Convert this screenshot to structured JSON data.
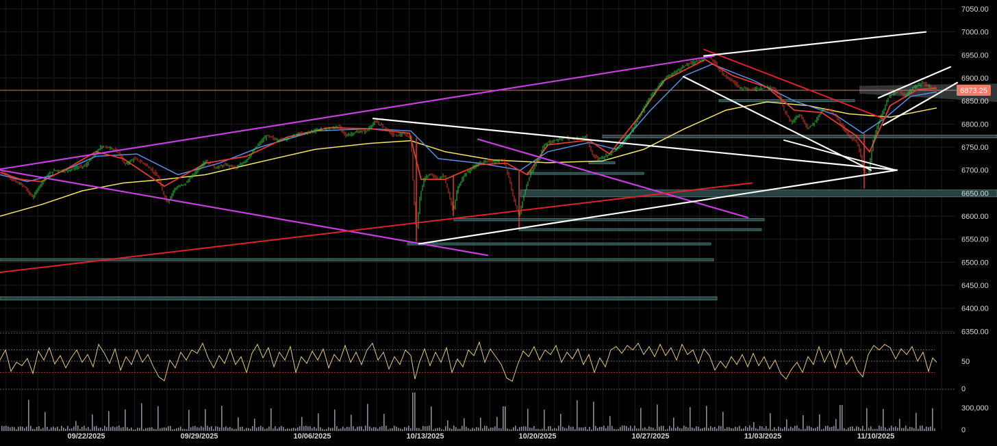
{
  "chart_data": {
    "type": "line",
    "title": "",
    "xlabel": "",
    "ylabel": "",
    "price_ticks": [
      "7050.00",
      "7000.00",
      "6950.00",
      "6900.00",
      "6850.00",
      "6800.00",
      "6750.00",
      "6700.00",
      "6650.00",
      "6600.00",
      "6550.00",
      "6500.00",
      "6450.00",
      "6400.00",
      "6350.00"
    ],
    "ylim": [
      6350,
      7050
    ],
    "date_ticks": [
      "09/22/2025",
      "09/29/2025",
      "10/06/2025",
      "10/13/2025",
      "10/20/2025",
      "10/27/2025",
      "11/03/2025",
      "11/10/2025"
    ],
    "last_price": "6873.25",
    "last_price_value": 6873.25,
    "rsi_ticks": [
      "50",
      "0"
    ],
    "rsi_levels": [
      30,
      50,
      70
    ],
    "volume_ticks": [
      "300,000",
      "0"
    ],
    "price_path": [
      [
        0,
        6700
      ],
      [
        10,
        6690
      ],
      [
        22,
        6675
      ],
      [
        35,
        6665
      ],
      [
        48,
        6640
      ],
      [
        55,
        6660
      ],
      [
        68,
        6688
      ],
      [
        80,
        6700
      ],
      [
        95,
        6698
      ],
      [
        110,
        6705
      ],
      [
        125,
        6710
      ],
      [
        135,
        6728
      ],
      [
        148,
        6752
      ],
      [
        162,
        6748
      ],
      [
        175,
        6735
      ],
      [
        182,
        6712
      ],
      [
        196,
        6725
      ],
      [
        210,
        6715
      ],
      [
        222,
        6700
      ],
      [
        232,
        6682
      ],
      [
        238,
        6650
      ],
      [
        245,
        6630
      ],
      [
        255,
        6660
      ],
      [
        270,
        6670
      ],
      [
        285,
        6695
      ],
      [
        300,
        6720
      ],
      [
        315,
        6705
      ],
      [
        330,
        6712
      ],
      [
        345,
        6705
      ],
      [
        360,
        6722
      ],
      [
        375,
        6752
      ],
      [
        390,
        6775
      ],
      [
        405,
        6765
      ],
      [
        420,
        6770
      ],
      [
        435,
        6778
      ],
      [
        450,
        6782
      ],
      [
        465,
        6788
      ],
      [
        480,
        6790
      ],
      [
        495,
        6795
      ],
      [
        505,
        6775
      ],
      [
        520,
        6782
      ],
      [
        535,
        6785
      ],
      [
        548,
        6805
      ],
      [
        560,
        6795
      ],
      [
        575,
        6775
      ],
      [
        590,
        6778
      ],
      [
        600,
        6770
      ],
      [
        604,
        6650
      ],
      [
        608,
        6560
      ],
      [
        613,
        6640
      ],
      [
        620,
        6685
      ],
      [
        630,
        6690
      ],
      [
        640,
        6680
      ],
      [
        648,
        6690
      ],
      [
        655,
        6650
      ],
      [
        662,
        6610
      ],
      [
        668,
        6660
      ],
      [
        678,
        6690
      ],
      [
        690,
        6705
      ],
      [
        700,
        6715
      ],
      [
        712,
        6720
      ],
      [
        724,
        6718
      ],
      [
        735,
        6722
      ],
      [
        742,
        6690
      ],
      [
        750,
        6640
      ],
      [
        758,
        6600
      ],
      [
        765,
        6645
      ],
      [
        775,
        6695
      ],
      [
        785,
        6720
      ],
      [
        795,
        6755
      ],
      [
        810,
        6765
      ],
      [
        825,
        6770
      ],
      [
        840,
        6768
      ],
      [
        855,
        6772
      ],
      [
        865,
        6735
      ],
      [
        872,
        6725
      ],
      [
        880,
        6728
      ],
      [
        890,
        6735
      ],
      [
        905,
        6750
      ],
      [
        920,
        6780
      ],
      [
        935,
        6820
      ],
      [
        948,
        6855
      ],
      [
        960,
        6880
      ],
      [
        972,
        6900
      ],
      [
        985,
        6912
      ],
      [
        998,
        6925
      ],
      [
        1012,
        6935
      ],
      [
        1025,
        6940
      ],
      [
        1035,
        6948
      ],
      [
        1043,
        6935
      ],
      [
        1050,
        6920
      ],
      [
        1058,
        6905
      ],
      [
        1068,
        6895
      ],
      [
        1080,
        6880
      ],
      [
        1095,
        6875
      ],
      [
        1110,
        6878
      ],
      [
        1125,
        6880
      ],
      [
        1138,
        6865
      ],
      [
        1145,
        6830
      ],
      [
        1155,
        6805
      ],
      [
        1168,
        6820
      ],
      [
        1180,
        6790
      ],
      [
        1190,
        6805
      ],
      [
        1200,
        6830
      ],
      [
        1212,
        6830
      ],
      [
        1222,
        6815
      ],
      [
        1232,
        6790
      ],
      [
        1242,
        6770
      ],
      [
        1252,
        6760
      ],
      [
        1262,
        6695
      ],
      [
        1268,
        6690
      ],
      [
        1275,
        6765
      ],
      [
        1285,
        6810
      ],
      [
        1298,
        6860
      ],
      [
        1310,
        6870
      ],
      [
        1322,
        6862
      ],
      [
        1335,
        6880
      ],
      [
        1348,
        6890
      ],
      [
        1358,
        6882
      ],
      [
        1368,
        6873
      ]
    ],
    "ma_fast_path": [
      [
        0,
        6695
      ],
      [
        30,
        6680
      ],
      [
        60,
        6675
      ],
      [
        100,
        6705
      ],
      [
        140,
        6740
      ],
      [
        180,
        6725
      ],
      [
        240,
        6665
      ],
      [
        300,
        6715
      ],
      [
        360,
        6730
      ],
      [
        420,
        6772
      ],
      [
        480,
        6792
      ],
      [
        540,
        6790
      ],
      [
        598,
        6780
      ],
      [
        615,
        6680
      ],
      [
        650,
        6680
      ],
      [
        700,
        6712
      ],
      [
        740,
        6715
      ],
      [
        770,
        6690
      ],
      [
        800,
        6755
      ],
      [
        860,
        6765
      ],
      [
        890,
        6735
      ],
      [
        930,
        6810
      ],
      [
        970,
        6895
      ],
      [
        1030,
        6940
      ],
      [
        1070,
        6905
      ],
      [
        1120,
        6880
      ],
      [
        1160,
        6830
      ],
      [
        1200,
        6825
      ],
      [
        1250,
        6775
      ],
      [
        1270,
        6740
      ],
      [
        1300,
        6840
      ],
      [
        1340,
        6875
      ],
      [
        1368,
        6878
      ]
    ],
    "ma_mid_path": [
      [
        0,
        6690
      ],
      [
        40,
        6675
      ],
      [
        80,
        6690
      ],
      [
        140,
        6730
      ],
      [
        200,
        6735
      ],
      [
        260,
        6690
      ],
      [
        320,
        6715
      ],
      [
        380,
        6750
      ],
      [
        460,
        6785
      ],
      [
        540,
        6790
      ],
      [
        600,
        6785
      ],
      [
        640,
        6725
      ],
      [
        700,
        6715
      ],
      [
        760,
        6700
      ],
      [
        800,
        6740
      ],
      [
        860,
        6760
      ],
      [
        900,
        6745
      ],
      [
        950,
        6830
      ],
      [
        1000,
        6905
      ],
      [
        1040,
        6930
      ],
      [
        1100,
        6895
      ],
      [
        1160,
        6850
      ],
      [
        1220,
        6820
      ],
      [
        1260,
        6780
      ],
      [
        1290,
        6810
      ],
      [
        1330,
        6860
      ],
      [
        1368,
        6870
      ]
    ],
    "ma_slow_path": [
      [
        0,
        6600
      ],
      [
        60,
        6625
      ],
      [
        120,
        6655
      ],
      [
        180,
        6672
      ],
      [
        240,
        6680
      ],
      [
        300,
        6690
      ],
      [
        380,
        6718
      ],
      [
        460,
        6745
      ],
      [
        540,
        6758
      ],
      [
        600,
        6764
      ],
      [
        650,
        6740
      ],
      [
        720,
        6722
      ],
      [
        800,
        6716
      ],
      [
        880,
        6720
      ],
      [
        940,
        6745
      ],
      [
        1000,
        6790
      ],
      [
        1060,
        6830
      ],
      [
        1120,
        6848
      ],
      [
        1180,
        6840
      ],
      [
        1240,
        6822
      ],
      [
        1300,
        6815
      ],
      [
        1368,
        6835
      ]
    ],
    "rsi_path": [
      [
        0,
        52
      ],
      [
        8,
        70
      ],
      [
        16,
        32
      ],
      [
        24,
        48
      ],
      [
        32,
        42
      ],
      [
        40,
        55
      ],
      [
        48,
        28
      ],
      [
        56,
        68
      ],
      [
        64,
        52
      ],
      [
        72,
        74
      ],
      [
        80,
        45
      ],
      [
        88,
        60
      ],
      [
        96,
        38
      ],
      [
        104,
        56
      ],
      [
        112,
        70
      ],
      [
        120,
        48
      ],
      [
        128,
        62
      ],
      [
        136,
        40
      ],
      [
        144,
        80
      ],
      [
        152,
        65
      ],
      [
        160,
        46
      ],
      [
        168,
        72
      ],
      [
        176,
        34
      ],
      [
        184,
        58
      ],
      [
        192,
        44
      ],
      [
        200,
        70
      ],
      [
        208,
        48
      ],
      [
        216,
        62
      ],
      [
        224,
        40
      ],
      [
        232,
        22
      ],
      [
        240,
        15
      ],
      [
        248,
        52
      ],
      [
        256,
        38
      ],
      [
        264,
        66
      ],
      [
        272,
        52
      ],
      [
        280,
        70
      ],
      [
        288,
        64
      ],
      [
        296,
        82
      ],
      [
        304,
        56
      ],
      [
        312,
        38
      ],
      [
        320,
        60
      ],
      [
        328,
        46
      ],
      [
        336,
        72
      ],
      [
        344,
        44
      ],
      [
        352,
        58
      ],
      [
        360,
        30
      ],
      [
        368,
        64
      ],
      [
        376,
        80
      ],
      [
        384,
        56
      ],
      [
        392,
        74
      ],
      [
        400,
        40
      ],
      [
        408,
        66
      ],
      [
        416,
        52
      ],
      [
        424,
        76
      ],
      [
        432,
        30
      ],
      [
        440,
        58
      ],
      [
        448,
        46
      ],
      [
        456,
        68
      ],
      [
        464,
        52
      ],
      [
        472,
        72
      ],
      [
        480,
        38
      ],
      [
        488,
        62
      ],
      [
        496,
        50
      ],
      [
        504,
        78
      ],
      [
        512,
        48
      ],
      [
        520,
        66
      ],
      [
        528,
        44
      ],
      [
        536,
        70
      ],
      [
        544,
        82
      ],
      [
        552,
        52
      ],
      [
        560,
        66
      ],
      [
        568,
        36
      ],
      [
        576,
        58
      ],
      [
        584,
        44
      ],
      [
        592,
        70
      ],
      [
        600,
        60
      ],
      [
        606,
        18
      ],
      [
        612,
        46
      ],
      [
        620,
        72
      ],
      [
        628,
        42
      ],
      [
        636,
        66
      ],
      [
        644,
        48
      ],
      [
        652,
        74
      ],
      [
        660,
        30
      ],
      [
        668,
        54
      ],
      [
        676,
        40
      ],
      [
        684,
        70
      ],
      [
        692,
        60
      ],
      [
        700,
        84
      ],
      [
        708,
        48
      ],
      [
        716,
        72
      ],
      [
        724,
        58
      ],
      [
        732,
        44
      ],
      [
        740,
        20
      ],
      [
        748,
        14
      ],
      [
        756,
        44
      ],
      [
        764,
        68
      ],
      [
        772,
        58
      ],
      [
        780,
        76
      ],
      [
        788,
        52
      ],
      [
        796,
        70
      ],
      [
        804,
        62
      ],
      [
        812,
        78
      ],
      [
        820,
        48
      ],
      [
        828,
        66
      ],
      [
        836,
        54
      ],
      [
        844,
        72
      ],
      [
        852,
        44
      ],
      [
        860,
        62
      ],
      [
        868,
        30
      ],
      [
        876,
        56
      ],
      [
        884,
        40
      ],
      [
        892,
        70
      ],
      [
        900,
        76
      ],
      [
        908,
        64
      ],
      [
        916,
        78
      ],
      [
        924,
        70
      ],
      [
        932,
        82
      ],
      [
        940,
        62
      ],
      [
        948,
        76
      ],
      [
        956,
        58
      ],
      [
        964,
        80
      ],
      [
        972,
        60
      ],
      [
        980,
        74
      ],
      [
        988,
        52
      ],
      [
        996,
        80
      ],
      [
        1004,
        62
      ],
      [
        1012,
        70
      ],
      [
        1020,
        46
      ],
      [
        1028,
        72
      ],
      [
        1036,
        60
      ],
      [
        1044,
        34
      ],
      [
        1052,
        50
      ],
      [
        1060,
        38
      ],
      [
        1068,
        58
      ],
      [
        1076,
        44
      ],
      [
        1084,
        62
      ],
      [
        1092,
        40
      ],
      [
        1100,
        64
      ],
      [
        1108,
        42
      ],
      [
        1116,
        58
      ],
      [
        1124,
        36
      ],
      [
        1132,
        52
      ],
      [
        1140,
        28
      ],
      [
        1148,
        18
      ],
      [
        1156,
        36
      ],
      [
        1164,
        48
      ],
      [
        1172,
        30
      ],
      [
        1180,
        58
      ],
      [
        1188,
        44
      ],
      [
        1196,
        76
      ],
      [
        1204,
        48
      ],
      [
        1212,
        68
      ],
      [
        1220,
        38
      ],
      [
        1228,
        72
      ],
      [
        1236,
        44
      ],
      [
        1244,
        58
      ],
      [
        1252,
        34
      ],
      [
        1260,
        22
      ],
      [
        1268,
        62
      ],
      [
        1276,
        78
      ],
      [
        1284,
        70
      ],
      [
        1292,
        80
      ],
      [
        1300,
        74
      ],
      [
        1308,
        54
      ],
      [
        1316,
        72
      ],
      [
        1324,
        62
      ],
      [
        1332,
        76
      ],
      [
        1340,
        50
      ],
      [
        1348,
        66
      ],
      [
        1356,
        32
      ],
      [
        1362,
        56
      ],
      [
        1368,
        48
      ]
    ]
  }
}
